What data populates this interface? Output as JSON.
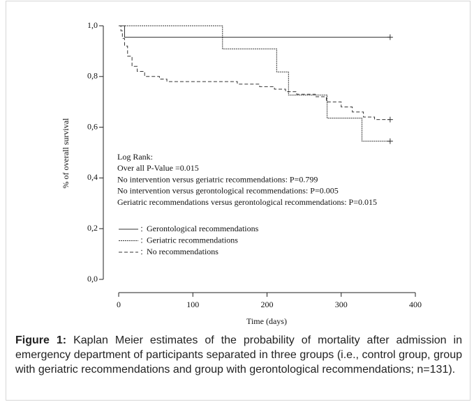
{
  "chart_data": {
    "type": "line",
    "step": true,
    "ylabel": "% of overall survival",
    "xlabel": "Time (days)",
    "xlim": [
      0,
      400
    ],
    "xticks": [
      0,
      100,
      200,
      300,
      400
    ],
    "ylim": [
      0,
      1.0
    ],
    "yticks": [
      {
        "value": 0,
        "label": "0,0"
      },
      {
        "value": 0.2,
        "label": "0,2"
      },
      {
        "value": 0.4,
        "label": "0,4"
      },
      {
        "value": 0.6,
        "label": "0,6"
      },
      {
        "value": 0.8,
        "label": "0,8"
      },
      {
        "value": 1.0,
        "label": "1,0"
      }
    ],
    "annotations": [
      "Log Rank:",
      "Over all P-Value =0.015",
      "No intervention versus geriatric recommendations: P=0.799",
      "No intervention versus gerontological recommendations: P=0.005",
      "Geriatric recommendations versus gerontological recommendations: P=0.015"
    ],
    "series": [
      {
        "name": "Gerontological recommendations",
        "color": "#333333",
        "dash": "solid",
        "x": [
          0,
          8,
          366
        ],
        "values": [
          1.0,
          0.955,
          0.955
        ]
      },
      {
        "name": "Geriatric recommendations",
        "color": "#333333",
        "dash": "dotted",
        "x": [
          0,
          140,
          213,
          229,
          281,
          328,
          366
        ],
        "values": [
          1.0,
          0.909,
          0.818,
          0.727,
          0.636,
          0.545,
          0.545
        ]
      },
      {
        "name": "No recommendations",
        "color": "#333333",
        "dash": "dashed",
        "x": [
          0,
          3,
          5,
          8,
          12,
          18,
          25,
          35,
          55,
          65,
          140,
          160,
          190,
          210,
          225,
          240,
          265,
          280,
          300,
          315,
          330,
          345,
          366
        ],
        "values": [
          1.0,
          0.98,
          0.95,
          0.92,
          0.88,
          0.84,
          0.82,
          0.8,
          0.79,
          0.78,
          0.78,
          0.77,
          0.76,
          0.75,
          0.74,
          0.73,
          0.72,
          0.7,
          0.68,
          0.66,
          0.64,
          0.63,
          0.63
        ]
      }
    ]
  },
  "figure": {
    "label": "Figure 1:",
    "caption": "Kaplan Meier estimates of the probability of mortality after admission in emergency department of participants separated in three groups (i.e., control group, group with geriatric recommendations and group with gerontological recommendations; n=131)."
  }
}
